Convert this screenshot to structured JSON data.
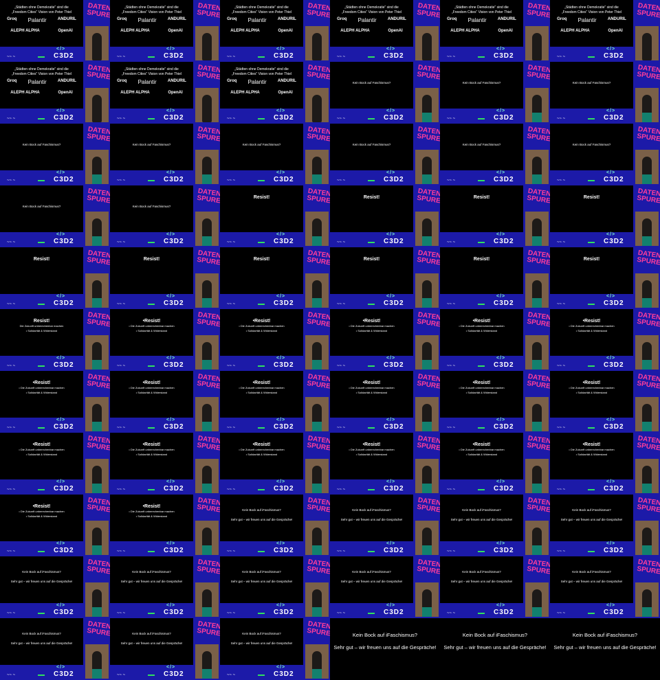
{
  "branding": {
    "event_logo": "DATEN SPUREN",
    "organizer_logo": "C3D2",
    "colors": {
      "panel": "#1c1aa8",
      "logo_pink": "#ff3d9a"
    }
  },
  "slides": {
    "A": {
      "title_line1": "„Städten ohne Demokratie“ sind die",
      "title_line2": "„Freedom Cities“ Vision von Peter Thiel",
      "logos": [
        "Groq",
        "Palantir",
        "ANDURIL",
        "ALEPH ALPHA",
        "OpenAI"
      ]
    },
    "B": {
      "text": "Kein Bock auf Faschismus?"
    },
    "C": {
      "title": "Resist!"
    },
    "C2": {
      "title": "Resist!",
      "bullets": [
        "Die Zukunft unberechenbar machen",
        "• Solidarität & Widerstand"
      ]
    },
    "D": {
      "title": "•Resist!",
      "bullets": [
        "• Die Zukunft unberechenbar machen",
        "• Solidarität & Widerstand"
      ]
    },
    "E": {
      "line1": "Kein Bock auf iFaschismus?",
      "line2": "Sehr gut – wir freuen uns auf die Gespräche!"
    },
    "F": {
      "line1": "Kein Bock auf iFaschismus?",
      "line2": "Sehr gut – wir freuen uns auf die Gespräche!"
    }
  },
  "frames": [
    "A",
    "A",
    "A",
    "A",
    "A",
    "A",
    "A",
    "A",
    "A",
    "B",
    "B",
    "B",
    "B",
    "B",
    "B",
    "B",
    "B",
    "B",
    "B",
    "B",
    "C",
    "C",
    "C",
    "C",
    "C",
    "C",
    "C",
    "C",
    "C",
    "C",
    "C2",
    "D",
    "D",
    "D",
    "D",
    "D",
    "D",
    "D",
    "D",
    "D",
    "D",
    "D",
    "D",
    "D",
    "D",
    "D",
    "D",
    "D",
    "D",
    "D",
    "E",
    "E",
    "E",
    "E",
    "E",
    "E",
    "E",
    "E",
    "E",
    "E",
    "E",
    "E",
    "E",
    "F",
    "F",
    "F"
  ]
}
